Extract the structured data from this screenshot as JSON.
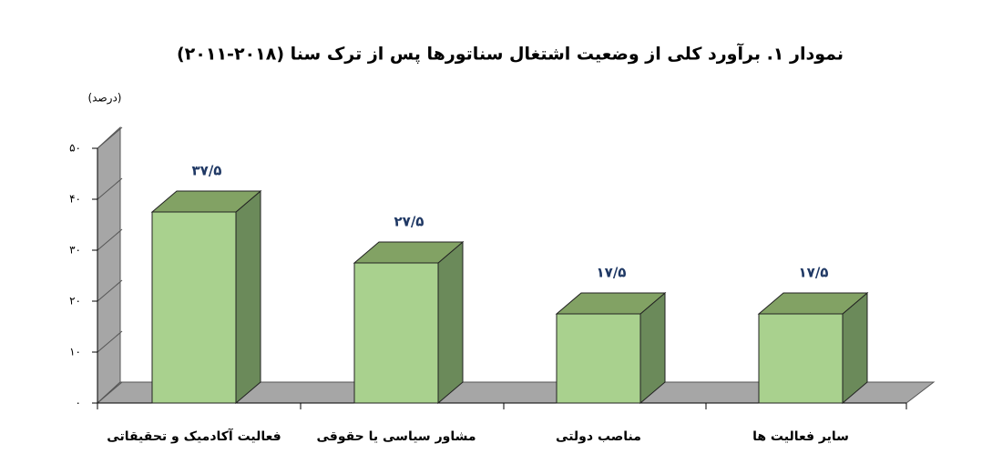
{
  "chart_data": {
    "type": "bar3d",
    "title": "نمودار ۱. برآورد کلی از وضعیت اشتغال سناتورها پس از ترک سنا (۲۰۱۸-۲۰۱۱)",
    "y_label": "(درصد)",
    "categories": [
      "فعالیت آکادمیک و تحقیقاتی",
      "مشاور سیاسی یا حقوقی",
      "مناصب دولتی",
      "سایر فعالیت ها"
    ],
    "values": [
      37.5,
      27.5,
      17.5,
      17.5
    ],
    "value_labels": [
      "۳۷/۵",
      "۲۷/۵",
      "۱۷/۵",
      "۱۷/۵"
    ],
    "color": "#a9d18e",
    "ylim": [
      0,
      50
    ],
    "yticks": [
      {
        "value": 0,
        "label": "۰"
      },
      {
        "value": 10,
        "label": "۱۰"
      },
      {
        "value": 20,
        "label": "۲۰"
      },
      {
        "value": 30,
        "label": "۳۰"
      },
      {
        "value": 40,
        "label": "۴۰"
      },
      {
        "value": 50,
        "label": "۵۰"
      }
    ]
  }
}
